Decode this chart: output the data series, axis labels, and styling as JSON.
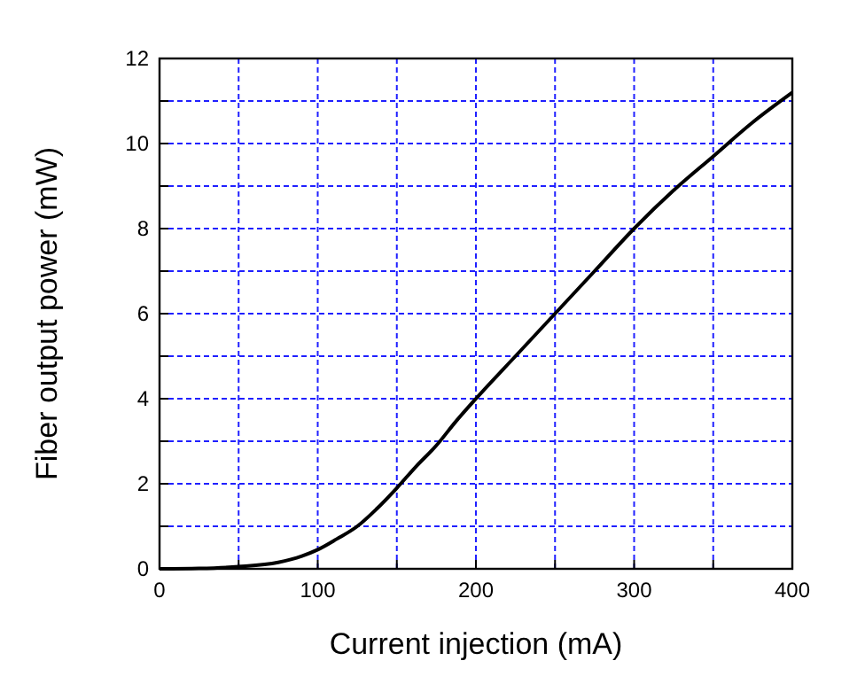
{
  "chart_data": {
    "type": "line",
    "xlabel": "Current injection (mA)",
    "ylabel": "Fiber output power (mW)",
    "xlim": [
      0,
      400
    ],
    "ylim": [
      0,
      12
    ],
    "xticks": [
      0,
      {
        "value": 50,
        "label": null
      },
      100,
      {
        "value": 150,
        "label": null
      },
      200,
      {
        "value": 250,
        "label": null
      },
      300,
      {
        "value": 350,
        "label": null
      },
      400
    ],
    "yticks": [
      0,
      {
        "value": 1,
        "label": null
      },
      2,
      {
        "value": 3,
        "label": null
      },
      4,
      {
        "value": 5,
        "label": null
      },
      6,
      {
        "value": 7,
        "label": null
      },
      8,
      {
        "value": 9,
        "label": null
      },
      10,
      {
        "value": 11,
        "label": null
      },
      12
    ],
    "grid": true,
    "marker": "none",
    "line_style": "solid",
    "series": [
      {
        "color": "#000000",
        "x": [
          0,
          25,
          50,
          75,
          90,
          100,
          112,
          125,
          137,
          150,
          162,
          175,
          187,
          200,
          225,
          250,
          275,
          300,
          325,
          350,
          375,
          400
        ],
        "values": [
          0,
          0.01,
          0.05,
          0.15,
          0.3,
          0.45,
          0.7,
          1.0,
          1.4,
          1.9,
          2.4,
          2.9,
          3.45,
          4.0,
          5.0,
          6.0,
          7.0,
          8.0,
          8.9,
          9.7,
          10.5,
          11.2
        ]
      }
    ]
  }
}
